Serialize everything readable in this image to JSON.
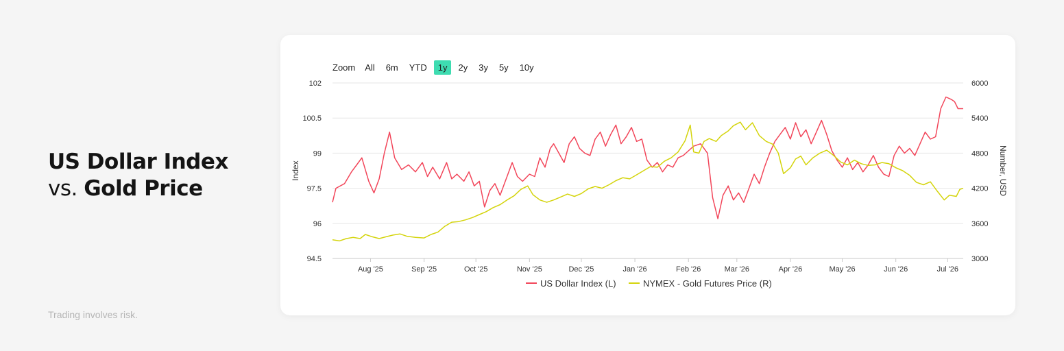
{
  "headline": {
    "line1": "US Dollar Index",
    "vs": "vs.",
    "line2_bold": "Gold Price"
  },
  "disclaimer": "Trading involves risk.",
  "zoom": {
    "label": "Zoom",
    "options": [
      "All",
      "6m",
      "YTD",
      "1y",
      "2y",
      "3y",
      "5y",
      "10y"
    ],
    "active": "1y"
  },
  "chart_data": {
    "type": "line",
    "xlabel": "",
    "y_left_label": "Index",
    "y_right_label": "Number, USD",
    "y_left_range": [
      94.5,
      102
    ],
    "y_right_range": [
      3000,
      6000
    ],
    "y_left_ticks": [
      "94.5",
      "96",
      "97.5",
      "99",
      "100.5",
      "102"
    ],
    "y_right_ticks": [
      "3000",
      "3600",
      "4200",
      "4800",
      "5400",
      "6000"
    ],
    "x_range": [
      "2025-07-10",
      "2026-07-10"
    ],
    "x_ticks": [
      {
        "label": "Aug '25",
        "date": "2025-08-01"
      },
      {
        "label": "Sep '25",
        "date": "2025-09-01"
      },
      {
        "label": "Oct '25",
        "date": "2025-10-01"
      },
      {
        "label": "Nov '25",
        "date": "2025-11-01"
      },
      {
        "label": "Dec '25",
        "date": "2025-12-01"
      },
      {
        "label": "Jan '26",
        "date": "2026-01-01"
      },
      {
        "label": "Feb '26",
        "date": "2026-02-01"
      },
      {
        "label": "Mar '26",
        "date": "2026-03-01"
      },
      {
        "label": "Apr '26",
        "date": "2026-04-01"
      },
      {
        "label": "May '26",
        "date": "2026-05-01"
      },
      {
        "label": "Jun '26",
        "date": "2026-06-01"
      },
      {
        "label": "Jul '26",
        "date": "2026-07-01"
      }
    ],
    "grid": "horizontal",
    "legend_position": "bottom-center",
    "series": [
      {
        "name": "US Dollar Index (L)",
        "axis": "left",
        "color": "#f2465a",
        "points": [
          [
            "2025-07-10",
            96.9
          ],
          [
            "2025-07-12",
            97.5
          ],
          [
            "2025-07-17",
            97.7
          ],
          [
            "2025-07-21",
            98.2
          ],
          [
            "2025-07-24",
            98.5
          ],
          [
            "2025-07-27",
            98.8
          ],
          [
            "2025-07-31",
            97.8
          ],
          [
            "2025-08-03",
            97.3
          ],
          [
            "2025-08-06",
            97.9
          ],
          [
            "2025-08-09",
            99.0
          ],
          [
            "2025-08-12",
            99.9
          ],
          [
            "2025-08-15",
            98.8
          ],
          [
            "2025-08-19",
            98.3
          ],
          [
            "2025-08-23",
            98.5
          ],
          [
            "2025-08-27",
            98.2
          ],
          [
            "2025-08-31",
            98.6
          ],
          [
            "2025-09-03",
            98.0
          ],
          [
            "2025-09-06",
            98.4
          ],
          [
            "2025-09-10",
            97.9
          ],
          [
            "2025-09-14",
            98.6
          ],
          [
            "2025-09-17",
            97.9
          ],
          [
            "2025-09-20",
            98.1
          ],
          [
            "2025-09-24",
            97.8
          ],
          [
            "2025-09-27",
            98.2
          ],
          [
            "2025-09-30",
            97.6
          ],
          [
            "2025-10-03",
            97.8
          ],
          [
            "2025-10-06",
            96.7
          ],
          [
            "2025-10-09",
            97.4
          ],
          [
            "2025-10-12",
            97.7
          ],
          [
            "2025-10-15",
            97.2
          ],
          [
            "2025-10-19",
            98.0
          ],
          [
            "2025-10-22",
            98.6
          ],
          [
            "2025-10-25",
            98.0
          ],
          [
            "2025-10-28",
            97.8
          ],
          [
            "2025-11-01",
            98.1
          ],
          [
            "2025-11-04",
            98.0
          ],
          [
            "2025-11-07",
            98.8
          ],
          [
            "2025-11-10",
            98.4
          ],
          [
            "2025-11-13",
            99.2
          ],
          [
            "2025-11-15",
            99.4
          ],
          [
            "2025-11-18",
            99.0
          ],
          [
            "2025-11-21",
            98.6
          ],
          [
            "2025-11-24",
            99.4
          ],
          [
            "2025-11-27",
            99.7
          ],
          [
            "2025-11-30",
            99.2
          ],
          [
            "2025-12-03",
            99.0
          ],
          [
            "2025-12-06",
            98.9
          ],
          [
            "2025-12-09",
            99.6
          ],
          [
            "2025-12-12",
            99.9
          ],
          [
            "2025-12-15",
            99.3
          ],
          [
            "2025-12-18",
            99.8
          ],
          [
            "2025-12-21",
            100.2
          ],
          [
            "2025-12-24",
            99.4
          ],
          [
            "2025-12-27",
            99.7
          ],
          [
            "2025-12-30",
            100.1
          ],
          [
            "2026-01-02",
            99.5
          ],
          [
            "2026-01-05",
            99.6
          ],
          [
            "2026-01-08",
            98.7
          ],
          [
            "2026-01-11",
            98.4
          ],
          [
            "2026-01-14",
            98.6
          ],
          [
            "2026-01-17",
            98.2
          ],
          [
            "2026-01-20",
            98.5
          ],
          [
            "2026-01-23",
            98.4
          ],
          [
            "2026-01-26",
            98.8
          ],
          [
            "2026-01-29",
            98.9
          ],
          [
            "2026-02-01",
            99.1
          ],
          [
            "2026-02-04",
            99.3
          ],
          [
            "2026-02-08",
            99.4
          ],
          [
            "2026-02-12",
            99.0
          ],
          [
            "2026-02-15",
            97.1
          ],
          [
            "2026-02-18",
            96.2
          ],
          [
            "2026-02-21",
            97.2
          ],
          [
            "2026-02-24",
            97.6
          ],
          [
            "2026-02-27",
            97.0
          ],
          [
            "2026-03-02",
            97.3
          ],
          [
            "2026-03-05",
            96.9
          ],
          [
            "2026-03-08",
            97.5
          ],
          [
            "2026-03-11",
            98.1
          ],
          [
            "2026-03-14",
            97.7
          ],
          [
            "2026-03-17",
            98.4
          ],
          [
            "2026-03-20",
            99.0
          ],
          [
            "2026-03-23",
            99.5
          ],
          [
            "2026-03-26",
            99.8
          ],
          [
            "2026-03-29",
            100.1
          ],
          [
            "2026-04-01",
            99.6
          ],
          [
            "2026-04-04",
            100.3
          ],
          [
            "2026-04-07",
            99.7
          ],
          [
            "2026-04-10",
            100.0
          ],
          [
            "2026-04-13",
            99.4
          ],
          [
            "2026-04-16",
            99.9
          ],
          [
            "2026-04-19",
            100.4
          ],
          [
            "2026-04-22",
            99.8
          ],
          [
            "2026-04-25",
            99.1
          ],
          [
            "2026-04-28",
            98.7
          ],
          [
            "2026-05-01",
            98.4
          ],
          [
            "2026-05-04",
            98.8
          ],
          [
            "2026-05-07",
            98.3
          ],
          [
            "2026-05-10",
            98.6
          ],
          [
            "2026-05-13",
            98.2
          ],
          [
            "2026-05-16",
            98.5
          ],
          [
            "2026-05-19",
            98.9
          ],
          [
            "2026-05-22",
            98.4
          ],
          [
            "2026-05-25",
            98.1
          ],
          [
            "2026-05-28",
            98.0
          ],
          [
            "2026-05-31",
            98.9
          ],
          [
            "2026-06-03",
            99.3
          ],
          [
            "2026-06-06",
            99.0
          ],
          [
            "2026-06-09",
            99.2
          ],
          [
            "2026-06-12",
            98.9
          ],
          [
            "2026-06-15",
            99.4
          ],
          [
            "2026-06-18",
            99.9
          ],
          [
            "2026-06-21",
            99.6
          ],
          [
            "2026-06-24",
            99.7
          ],
          [
            "2026-06-27",
            100.9
          ],
          [
            "2026-06-30",
            101.4
          ],
          [
            "2026-07-03",
            101.3
          ],
          [
            "2026-07-05",
            101.2
          ],
          [
            "2026-07-07",
            100.9
          ],
          [
            "2026-07-10",
            100.9
          ]
        ]
      },
      {
        "name": "NYMEX - Gold Futures Price (R)",
        "axis": "right",
        "color": "#d4d40c",
        "points": [
          [
            "2025-07-10",
            3320
          ],
          [
            "2025-07-14",
            3300
          ],
          [
            "2025-07-18",
            3340
          ],
          [
            "2025-07-22",
            3360
          ],
          [
            "2025-07-26",
            3340
          ],
          [
            "2025-07-29",
            3410
          ],
          [
            "2025-08-02",
            3370
          ],
          [
            "2025-08-06",
            3340
          ],
          [
            "2025-08-10",
            3370
          ],
          [
            "2025-08-14",
            3400
          ],
          [
            "2025-08-18",
            3420
          ],
          [
            "2025-08-22",
            3380
          ],
          [
            "2025-08-27",
            3360
          ],
          [
            "2025-09-01",
            3350
          ],
          [
            "2025-09-05",
            3410
          ],
          [
            "2025-09-09",
            3450
          ],
          [
            "2025-09-13",
            3550
          ],
          [
            "2025-09-17",
            3620
          ],
          [
            "2025-09-21",
            3630
          ],
          [
            "2025-09-25",
            3660
          ],
          [
            "2025-09-29",
            3700
          ],
          [
            "2025-10-03",
            3750
          ],
          [
            "2025-10-07",
            3800
          ],
          [
            "2025-10-11",
            3870
          ],
          [
            "2025-10-15",
            3920
          ],
          [
            "2025-10-19",
            4000
          ],
          [
            "2025-10-23",
            4070
          ],
          [
            "2025-10-27",
            4180
          ],
          [
            "2025-10-31",
            4240
          ],
          [
            "2025-11-03",
            4090
          ],
          [
            "2025-11-07",
            4000
          ],
          [
            "2025-11-11",
            3960
          ],
          [
            "2025-11-15",
            4000
          ],
          [
            "2025-11-19",
            4050
          ],
          [
            "2025-11-23",
            4100
          ],
          [
            "2025-11-27",
            4060
          ],
          [
            "2025-12-01",
            4110
          ],
          [
            "2025-12-05",
            4190
          ],
          [
            "2025-12-09",
            4230
          ],
          [
            "2025-12-13",
            4200
          ],
          [
            "2025-12-17",
            4260
          ],
          [
            "2025-12-21",
            4330
          ],
          [
            "2025-12-25",
            4380
          ],
          [
            "2025-12-29",
            4360
          ],
          [
            "2026-01-02",
            4430
          ],
          [
            "2026-01-06",
            4500
          ],
          [
            "2026-01-10",
            4570
          ],
          [
            "2026-01-14",
            4560
          ],
          [
            "2026-01-18",
            4660
          ],
          [
            "2026-01-22",
            4720
          ],
          [
            "2026-01-26",
            4820
          ],
          [
            "2026-01-30",
            5010
          ],
          [
            "2026-02-02",
            5280
          ],
          [
            "2026-02-04",
            4820
          ],
          [
            "2026-02-07",
            4800
          ],
          [
            "2026-02-10",
            5000
          ],
          [
            "2026-02-13",
            5050
          ],
          [
            "2026-02-17",
            5000
          ],
          [
            "2026-02-20",
            5100
          ],
          [
            "2026-02-24",
            5180
          ],
          [
            "2026-02-27",
            5270
          ],
          [
            "2026-03-03",
            5330
          ],
          [
            "2026-03-06",
            5200
          ],
          [
            "2026-03-10",
            5320
          ],
          [
            "2026-03-14",
            5100
          ],
          [
            "2026-03-18",
            5000
          ],
          [
            "2026-03-22",
            4950
          ],
          [
            "2026-03-25",
            4800
          ],
          [
            "2026-03-28",
            4450
          ],
          [
            "2026-04-01",
            4550
          ],
          [
            "2026-04-04",
            4700
          ],
          [
            "2026-04-07",
            4750
          ],
          [
            "2026-04-10",
            4600
          ],
          [
            "2026-04-14",
            4720
          ],
          [
            "2026-04-18",
            4800
          ],
          [
            "2026-04-22",
            4850
          ],
          [
            "2026-04-26",
            4760
          ],
          [
            "2026-04-30",
            4650
          ],
          [
            "2026-05-04",
            4600
          ],
          [
            "2026-05-08",
            4680
          ],
          [
            "2026-05-12",
            4620
          ],
          [
            "2026-05-16",
            4590
          ],
          [
            "2026-05-20",
            4600
          ],
          [
            "2026-05-24",
            4640
          ],
          [
            "2026-05-28",
            4620
          ],
          [
            "2026-06-01",
            4550
          ],
          [
            "2026-06-05",
            4500
          ],
          [
            "2026-06-09",
            4420
          ],
          [
            "2026-06-13",
            4300
          ],
          [
            "2026-06-17",
            4260
          ],
          [
            "2026-06-21",
            4310
          ],
          [
            "2026-06-25",
            4150
          ],
          [
            "2026-06-29",
            4000
          ],
          [
            "2026-07-02",
            4080
          ],
          [
            "2026-07-06",
            4060
          ],
          [
            "2026-07-08",
            4180
          ],
          [
            "2026-07-10",
            4200
          ]
        ]
      }
    ]
  }
}
